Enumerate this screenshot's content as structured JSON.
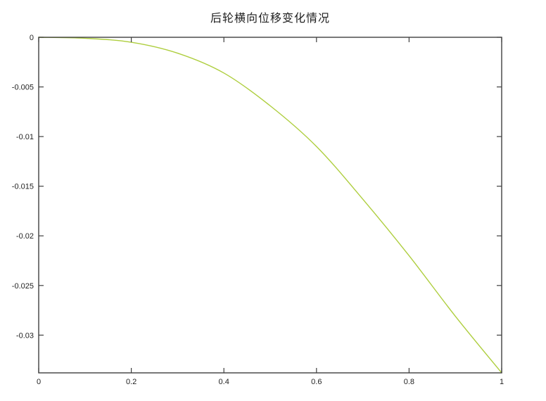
{
  "figure": {
    "background": "#ffffff"
  },
  "colors": {
    "curve": "#aece3e",
    "axis": "#3f3f3f",
    "text": "#1f1f1f",
    "background": "#ffffff"
  },
  "chart_data": {
    "type": "line",
    "title": "后轮横向位移变化情况",
    "xlabel": "",
    "ylabel": "",
    "x": [
      0,
      0.1,
      0.2,
      0.3,
      0.4,
      0.5,
      0.6,
      0.7,
      0.8,
      0.9,
      1.0
    ],
    "y": [
      0,
      -0.0001,
      -0.0005,
      -0.0016,
      -0.0036,
      -0.0069,
      -0.011,
      -0.0163,
      -0.022,
      -0.0281,
      -0.0338
    ],
    "xlim": [
      0,
      1
    ],
    "ylim": [
      -0.0338,
      0
    ],
    "x_ticks": [
      0,
      0.2,
      0.4,
      0.6,
      0.8,
      1
    ],
    "x_tick_labels": [
      "0",
      "0.2",
      "0.4",
      "0.6",
      "0.8",
      "1"
    ],
    "y_ticks": [
      0,
      -0.005,
      -0.01,
      -0.015,
      -0.02,
      -0.025,
      -0.03
    ],
    "y_tick_labels": [
      "0",
      "-0.005",
      "-0.01",
      "-0.015",
      "-0.02",
      "-0.025",
      "-0.03"
    ],
    "grid": false,
    "legend": "none",
    "box": true,
    "line_color": "#aece3e",
    "axis_color": "#3f3f3f"
  }
}
